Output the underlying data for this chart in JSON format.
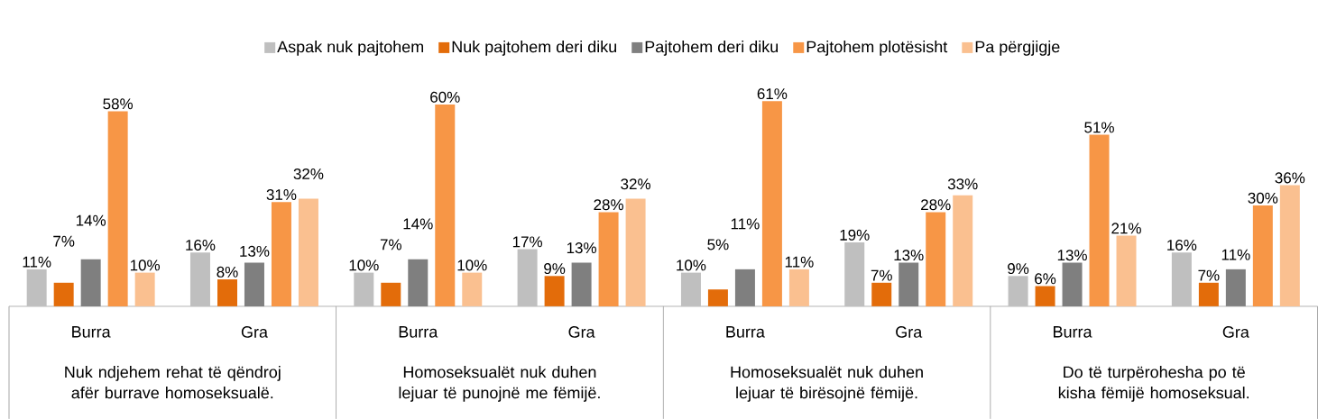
{
  "chart_data": {
    "type": "bar",
    "categories": [
      "Burra",
      "Gra",
      "Burra",
      "Gra",
      "Burra",
      "Gra",
      "Burra",
      "Gra"
    ],
    "series": [
      {
        "name": "Aspak nuk pajtohem",
        "color": "#bfbfbf",
        "values": [
          11,
          16,
          10,
          17,
          10,
          19,
          9,
          16
        ],
        "value_labels": [
          "11%",
          "16%",
          "10%",
          "17%",
          "10%",
          "19%",
          "9%",
          "16%"
        ]
      },
      {
        "name": "Nuk pajtohem deri diku",
        "color": "#e36c0a",
        "values": [
          7,
          8,
          7,
          9,
          5,
          7,
          6,
          7
        ],
        "value_labels": [
          "7%",
          "8%",
          "7%",
          "9%",
          "5%",
          "7%",
          "6%",
          "7%"
        ]
      },
      {
        "name": "Pajtohem deri diku",
        "color": "#7f7f7f",
        "values": [
          14,
          13,
          14,
          13,
          11,
          13,
          13,
          11
        ],
        "value_labels": [
          "14%",
          "13%",
          "14%",
          "13%",
          "11%",
          "13%",
          "13%",
          "11%"
        ]
      },
      {
        "name": "Pajtohem plotësisht",
        "color": "#f79646",
        "values": [
          58,
          31,
          60,
          28,
          61,
          28,
          51,
          30
        ],
        "value_labels": [
          "58%",
          "31%",
          "60%",
          "28%",
          "61%",
          "28%",
          "51%",
          "30%"
        ]
      },
      {
        "name": "Pa përgjigje",
        "color": "#fac090",
        "values": [
          10,
          32,
          10,
          32,
          11,
          33,
          21,
          36
        ],
        "value_labels": [
          "10%",
          "32%",
          "10%",
          "32%",
          "11%",
          "33%",
          "21%",
          "36%"
        ]
      }
    ],
    "annotations": [
      "Nuk ndjehem rehat të qëndroj afër burrave homoseksualë.",
      "Homoseksualët nuk duhen lejuar të punojnë me fëmijë.",
      "Homoseksualët nuk duhen lejuar të birësojnë fëmijë.",
      "Do të turpërohesha po të kisha fëmijë homoseksual."
    ],
    "legend": "top"
  }
}
